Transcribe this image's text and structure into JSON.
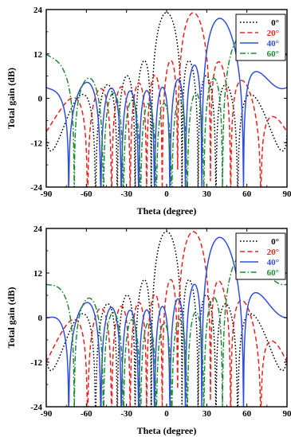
{
  "chart_data": [
    {
      "type": "line",
      "xlabel": "Theta (degree)",
      "ylabel": "Total gain (dB)",
      "xlim": [
        -90,
        90
      ],
      "ylim": [
        -24,
        24
      ],
      "x_ticks": [
        -90,
        -60,
        -30,
        0,
        30,
        60,
        90
      ],
      "y_ticks": [
        24,
        12,
        0,
        -12,
        -24
      ],
      "x_tick_labels": [
        "-90",
        "-60",
        "-30",
        "0",
        "30",
        "60",
        "90"
      ],
      "y_tick_labels": [
        "24",
        "12",
        "0",
        "-12",
        "-24"
      ],
      "legend_position": "top-right",
      "series": [
        {
          "name": "0°",
          "color": "#000000",
          "dash": "dot",
          "steer": 0,
          "peak": 23.2,
          "edge": -10
        },
        {
          "name": "20°",
          "color": "#e8231e",
          "dash": "dash",
          "steer": 20,
          "peak": 23.2,
          "edge": -9
        },
        {
          "name": "40°",
          "color": "#2f4ee0",
          "dash": "solid",
          "steer": 40,
          "peak": 22.0,
          "edge": 3
        },
        {
          "name": "60°",
          "color": "#1f8a32",
          "dash": "dashdot",
          "steer": 60,
          "peak": 18.5,
          "edge": 12
        }
      ]
    },
    {
      "type": "line",
      "xlabel": "Theta (degree)",
      "ylabel": "Total gain (dB)",
      "xlim": [
        -90,
        90
      ],
      "ylim": [
        -24,
        24
      ],
      "x_ticks": [
        -90,
        -60,
        -30,
        0,
        30,
        60,
        90
      ],
      "y_ticks": [
        24,
        12,
        0,
        -12,
        -24
      ],
      "x_tick_labels": [
        "-90",
        "-60",
        "-30",
        "0",
        "30",
        "60",
        "90"
      ],
      "y_tick_labels": [
        "24",
        "12",
        "0",
        "-12",
        "-24"
      ],
      "legend_position": "top-right",
      "series": [
        {
          "name": "0°",
          "color": "#000000",
          "dash": "dot",
          "steer": 0,
          "peak": 23.2,
          "edge": -10
        },
        {
          "name": "20°",
          "color": "#e8231e",
          "dash": "dash",
          "steer": 20,
          "peak": 23.2,
          "edge": -12
        },
        {
          "name": "40°",
          "color": "#2f4ee0",
          "dash": "solid",
          "steer": 40,
          "peak": 22.0,
          "edge": 0
        },
        {
          "name": "60°",
          "color": "#1f8a32",
          "dash": "dashdot",
          "steer": 60,
          "peak": 18.5,
          "edge": 9
        }
      ]
    }
  ]
}
